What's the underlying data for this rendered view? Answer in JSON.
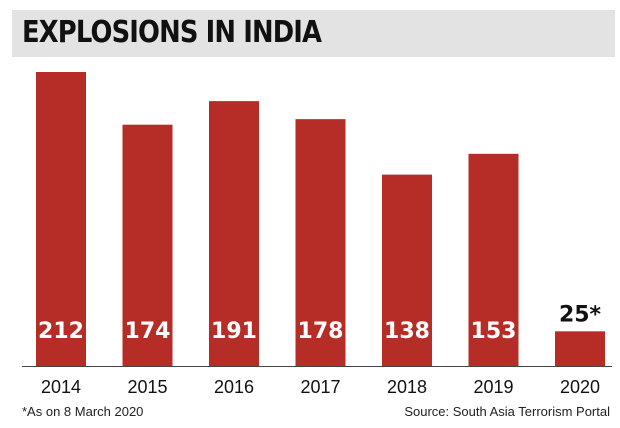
{
  "title": "EXPLOSIONS IN INDIA",
  "footnote": "*As on 8 March 2020",
  "source": "Source: South Asia Terrorism Portal",
  "chart_data": {
    "type": "bar",
    "title": "EXPLOSIONS IN INDIA",
    "categories": [
      "2014",
      "2015",
      "2016",
      "2017",
      "2018",
      "2019",
      "2020"
    ],
    "values": [
      212,
      174,
      191,
      178,
      138,
      153,
      25
    ],
    "data_labels": [
      "212",
      "174",
      "191",
      "178",
      "138",
      "153",
      "25*"
    ],
    "bar_color": "#b52d26",
    "ylim": [
      0,
      212
    ],
    "grid": false,
    "legend": "none"
  }
}
